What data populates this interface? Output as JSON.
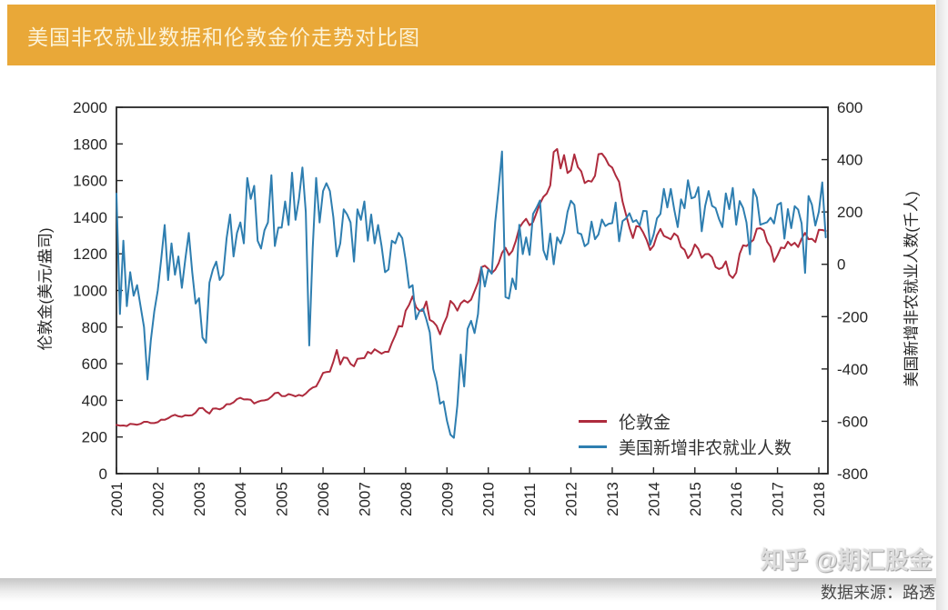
{
  "header": {
    "title": "美国非农就业数据和伦敦金价走势对比图",
    "background": "#E9A838",
    "text_color": "#FCF3D8"
  },
  "chart_data": {
    "type": "line",
    "title": "美国非农就业数据和伦敦金价走势对比图",
    "grid": false,
    "axis_color": "#262626",
    "legend_position": "lower-right-inside",
    "x_axis": {
      "start_year": 2001,
      "end_year": 2018.22,
      "points_per_year": 12,
      "tick_years": [
        2001,
        2002,
        2003,
        2004,
        2005,
        2006,
        2007,
        2008,
        2009,
        2010,
        2011,
        2012,
        2013,
        2014,
        2015,
        2016,
        2017,
        2018
      ]
    },
    "left_axis": {
      "label": "伦敦金(美元/盎司)",
      "min": 0,
      "max": 2000,
      "ticks": [
        0,
        200,
        400,
        600,
        800,
        1000,
        1200,
        1400,
        1600,
        1800,
        2000
      ]
    },
    "right_axis": {
      "label": "美国新增非农就业人数(千人)",
      "min": -800,
      "max": 600,
      "ticks": [
        -800,
        -600,
        -400,
        -200,
        0,
        200,
        400,
        600
      ]
    },
    "series": [
      {
        "name": "伦敦金",
        "axis": "left",
        "color": "#AE2B3D",
        "unit": "USD/oz",
        "values": [
          266,
          262,
          263,
          260,
          272,
          270,
          267,
          272,
          283,
          283,
          276,
          276,
          281,
          295,
          294,
          302,
          314,
          321,
          313,
          310,
          319,
          317,
          319,
          333,
          357,
          359,
          340,
          328,
          355,
          356,
          351,
          360,
          379,
          379,
          389,
          407,
          414,
          405,
          406,
          403,
          383,
          392,
          398,
          400,
          405,
          420,
          439,
          442,
          424,
          423,
          434,
          429,
          422,
          430,
          424,
          437,
          456,
          470,
          476,
          510,
          550,
          555,
          557,
          611,
          675,
          596,
          634,
          632,
          599,
          586,
          627,
          629,
          631,
          665,
          655,
          679,
          667,
          655,
          665,
          665,
          713,
          755,
          806,
          803,
          890,
          922,
          968,
          910,
          889,
          889,
          940,
          839,
          829,
          807,
          761,
          816,
          858,
          943,
          924,
          890,
          929,
          946,
          934,
          950,
          996,
          1043,
          1127,
          1135,
          1118,
          1095,
          1113,
          1149,
          1205,
          1233,
          1193,
          1216,
          1271,
          1342,
          1370,
          1391,
          1356,
          1373,
          1424,
          1474,
          1511,
          1529,
          1573,
          1756,
          1772,
          1666,
          1739,
          1641,
          1656,
          1743,
          1674,
          1650,
          1586,
          1599,
          1594,
          1626,
          1744,
          1747,
          1722,
          1685,
          1671,
          1628,
          1593,
          1485,
          1414,
          1343,
          1286,
          1351,
          1348,
          1316,
          1276,
          1221,
          1244,
          1301,
          1336,
          1298,
          1289,
          1279,
          1311,
          1296,
          1237,
          1222,
          1176,
          1200,
          1251,
          1227,
          1178,
          1198,
          1199,
          1181,
          1128,
          1117,
          1125,
          1159,
          1086,
          1068,
          1097,
          1200,
          1246,
          1242,
          1260,
          1276,
          1337,
          1340,
          1327,
          1266,
          1238,
          1157,
          1192,
          1234,
          1231,
          1266,
          1246,
          1260,
          1237,
          1283,
          1314,
          1280,
          1282,
          1264,
          1331,
          1330,
          1325
        ]
      },
      {
        "name": "美国新增非农就业人数",
        "axis": "right",
        "color": "#2E7EB0",
        "unit": "thousand persons",
        "values": [
          270,
          -190,
          90,
          -160,
          -30,
          -120,
          -80,
          -160,
          -240,
          -440,
          -290,
          -180,
          -100,
          20,
          150,
          -60,
          80,
          -40,
          30,
          -90,
          20,
          120,
          -30,
          -150,
          -130,
          -280,
          -300,
          -70,
          -20,
          10,
          -60,
          -40,
          100,
          190,
          30,
          120,
          160,
          80,
          330,
          250,
          300,
          90,
          60,
          130,
          160,
          340,
          70,
          140,
          140,
          240,
          150,
          350,
          170,
          250,
          370,
          200,
          -310,
          60,
          330,
          160,
          280,
          310,
          280,
          180,
          30,
          80,
          210,
          190,
          160,
          10,
          210,
          170,
          240,
          90,
          190,
          80,
          150,
          70,
          -30,
          -20,
          90,
          80,
          120,
          100,
          15,
          -90,
          -80,
          -210,
          -180,
          -170,
          -210,
          -260,
          -400,
          -450,
          -533,
          -524,
          -598,
          -651,
          -663,
          -539,
          -345,
          -467,
          -247,
          -216,
          -263,
          -190,
          -11,
          -85,
          -20,
          -36,
          162,
          290,
          431,
          -125,
          -131,
          -54,
          -95,
          151,
          39,
          103,
          36,
          192,
          216,
          244,
          54,
          18,
          117,
          0,
          103,
          80,
          120,
          200,
          243,
          227,
          120,
          115,
          69,
          80,
          163,
          96,
          114,
          171,
          146,
          155,
          157,
          236,
          88,
          165,
          175,
          195,
          162,
          169,
          148,
          204,
          203,
          74,
          113,
          175,
          192,
          288,
          217,
          288,
          209,
          142,
          248,
          214,
          321,
          252,
          257,
          295,
          126,
          223,
          280,
          223,
          215,
          173,
          142,
          271,
          211,
          292,
          151,
          242,
          215,
          160,
          38,
          287,
          255,
          151,
          156,
          161,
          178,
          156,
          227,
          235,
          98,
          211,
          138,
          222,
          209,
          156,
          -33,
          261,
          228,
          148,
          200,
          313,
          103
        ]
      }
    ]
  },
  "legend": {
    "items": [
      {
        "label": "伦敦金"
      },
      {
        "label": "美国新增非农就业人数"
      }
    ]
  },
  "footer": {
    "source": "数据来源：路透"
  },
  "watermark": {
    "text": "知乎 @期汇股金"
  }
}
